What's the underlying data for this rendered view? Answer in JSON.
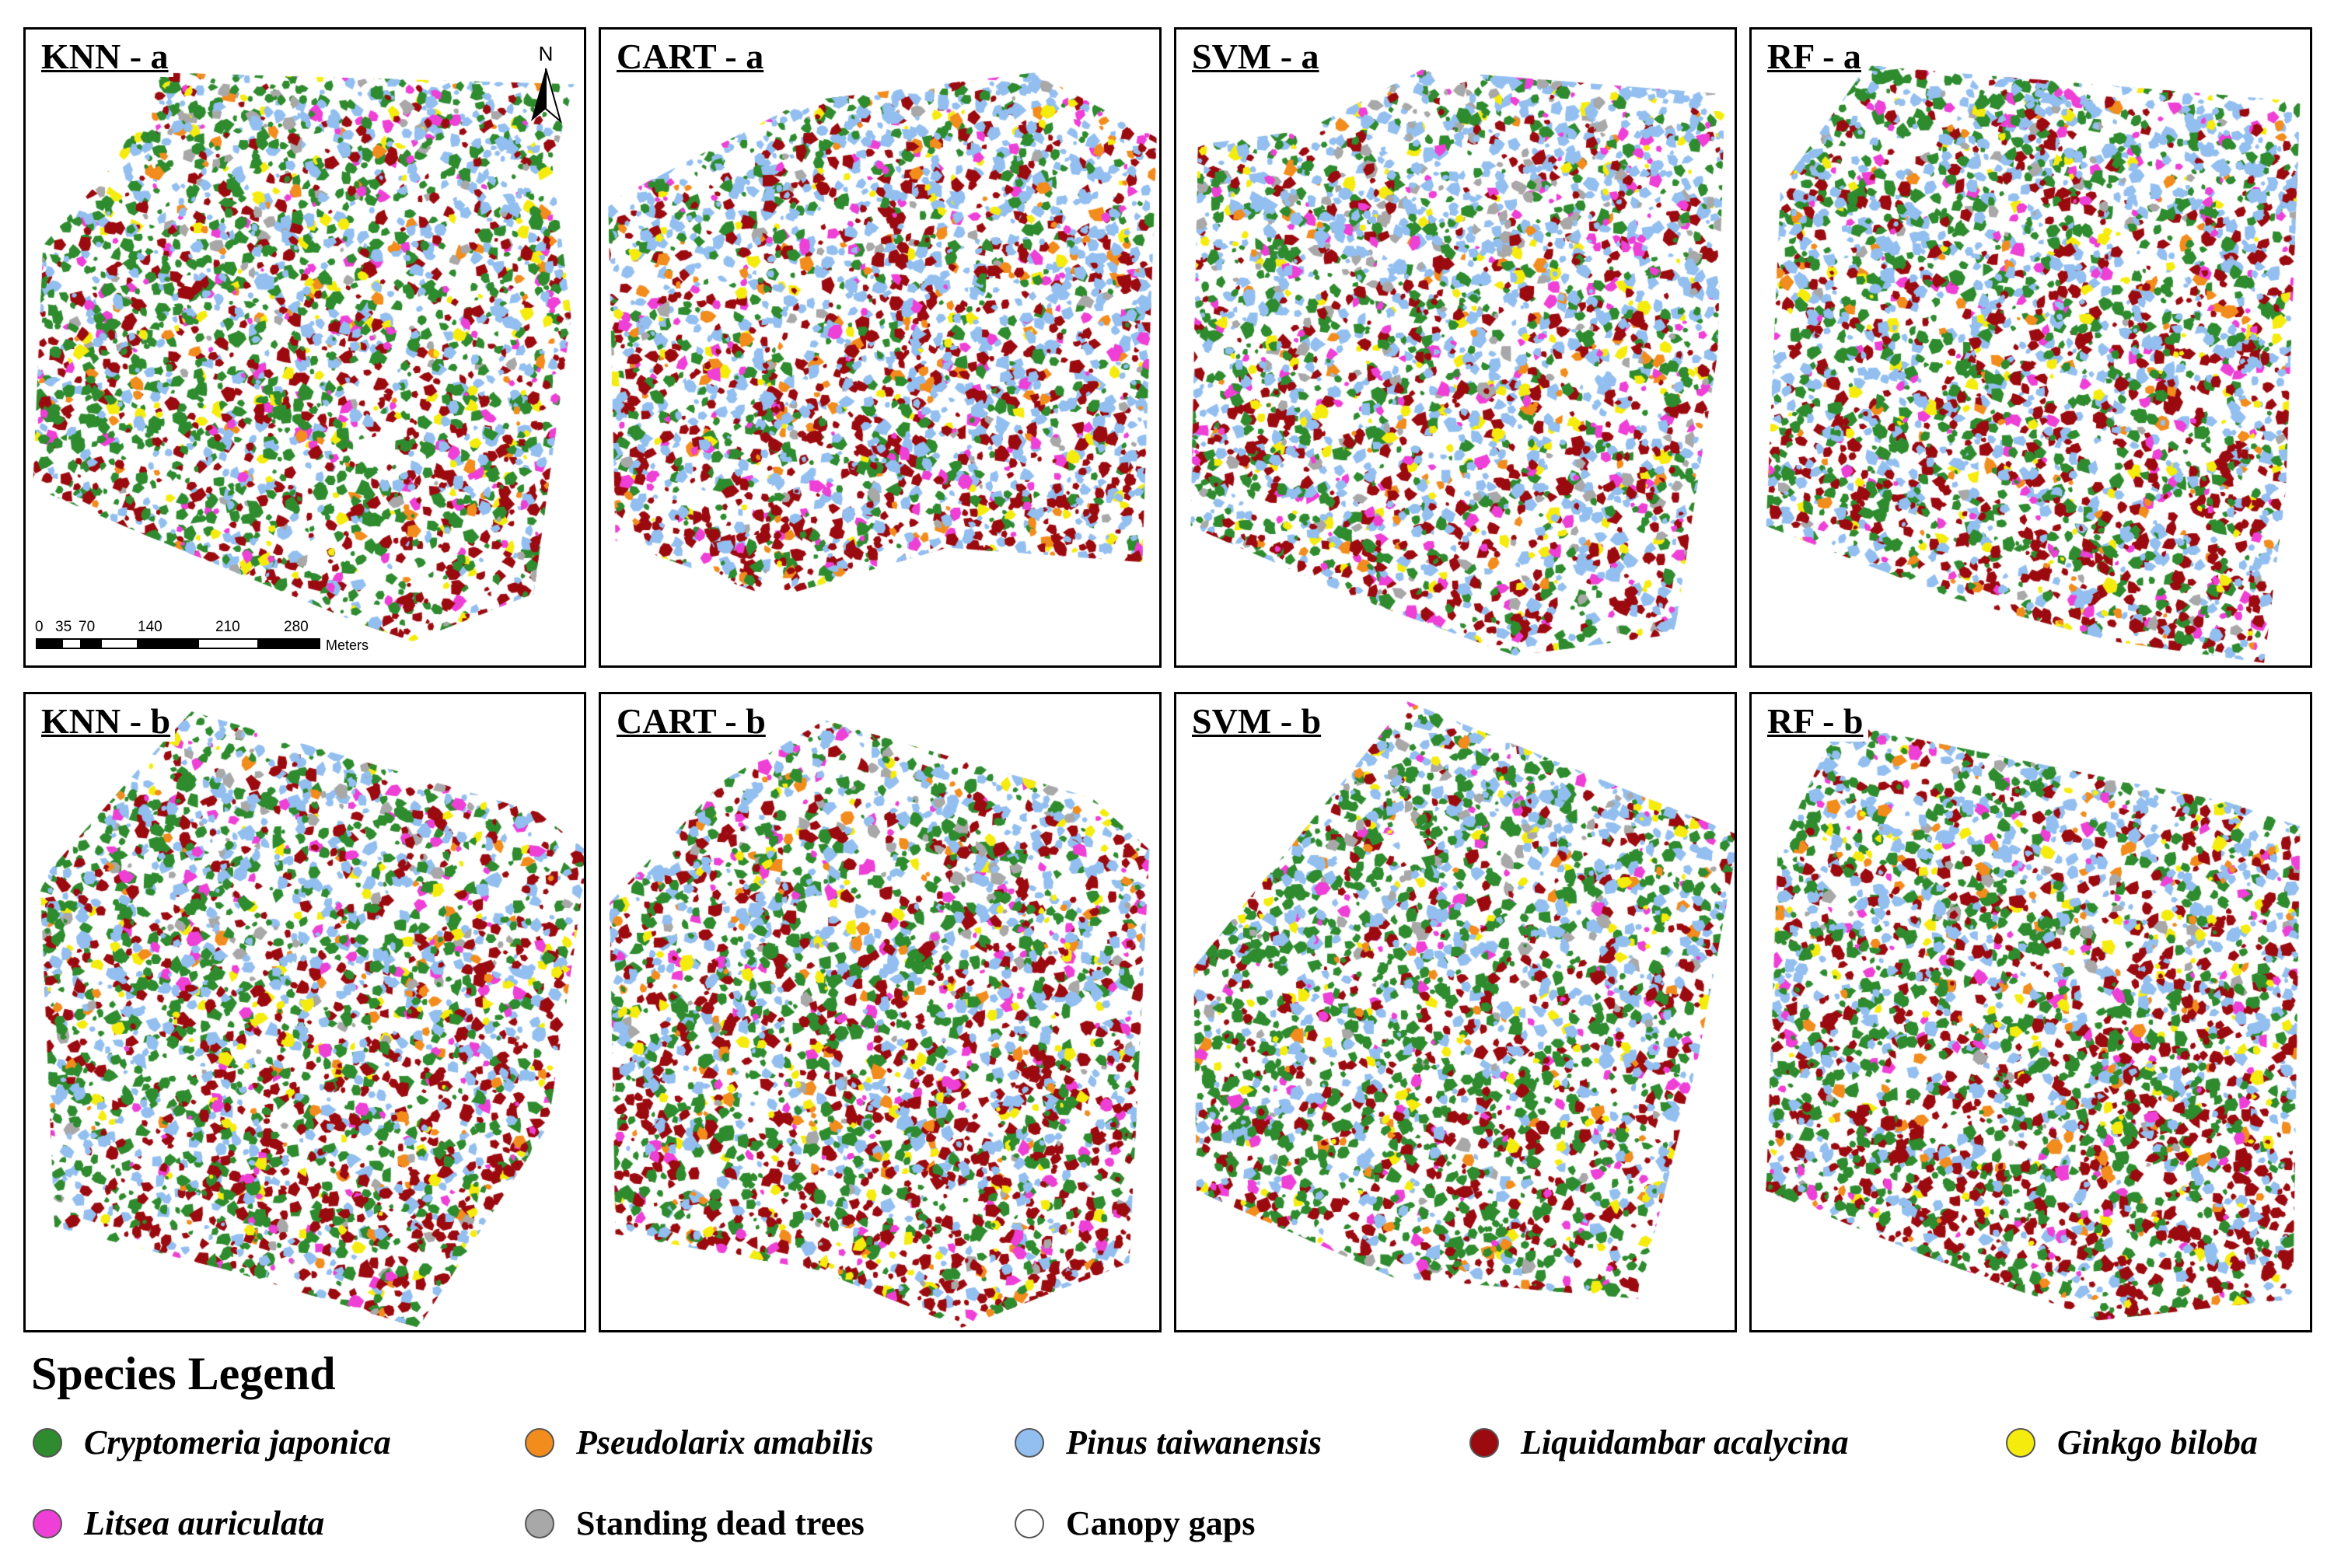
{
  "panels": [
    {
      "label": "KNN - a",
      "seed": 11,
      "mix": [
        0.34,
        0.03,
        0.18,
        0.17,
        0.05,
        0.06,
        0.04
      ]
    },
    {
      "label": "CART - a",
      "seed": 23,
      "mix": [
        0.16,
        0.05,
        0.33,
        0.22,
        0.04,
        0.07,
        0.02
      ]
    },
    {
      "label": "SVM - a",
      "seed": 37,
      "mix": [
        0.2,
        0.03,
        0.3,
        0.16,
        0.06,
        0.07,
        0.07
      ]
    },
    {
      "label": "RF - a",
      "seed": 41,
      "mix": [
        0.28,
        0.03,
        0.27,
        0.2,
        0.04,
        0.06,
        0.02
      ]
    },
    {
      "label": "KNN - b",
      "seed": 53,
      "mix": [
        0.3,
        0.03,
        0.22,
        0.22,
        0.04,
        0.05,
        0.04
      ]
    },
    {
      "label": "CART - b",
      "seed": 67,
      "mix": [
        0.27,
        0.04,
        0.22,
        0.23,
        0.05,
        0.06,
        0.03
      ]
    },
    {
      "label": "SVM - b",
      "seed": 71,
      "mix": [
        0.36,
        0.03,
        0.2,
        0.16,
        0.05,
        0.06,
        0.04
      ]
    },
    {
      "label": "RF - b",
      "seed": 89,
      "mix": [
        0.3,
        0.04,
        0.24,
        0.24,
        0.05,
        0.04,
        0.02
      ]
    }
  ],
  "north_arrow": {
    "letter": "N"
  },
  "scale_bar": {
    "ticks": [
      "0",
      "35",
      "70",
      "140",
      "210",
      "280"
    ],
    "unit": "Meters"
  },
  "legend": {
    "title": "Species Legend",
    "items": [
      {
        "label": "Cryptomeria japonica",
        "color": "#2e8b2e",
        "italic": true
      },
      {
        "label": "Pseudolarix amabilis",
        "color": "#f28c1c",
        "italic": true
      },
      {
        "label": "Pinus taiwanensis",
        "color": "#92bff0",
        "italic": true
      },
      {
        "label": "Liquidambar acalycina",
        "color": "#9b0a0f",
        "italic": true
      },
      {
        "label": "Ginkgo biloba",
        "color": "#f5ec0e",
        "italic": true
      },
      {
        "label": "Litsea auriculata",
        "color": "#ee3fd6",
        "italic": true
      },
      {
        "label": "Standing dead trees",
        "color": "#a8a8a8",
        "italic": false
      },
      {
        "label": "Canopy gaps",
        "color": "#ffffff",
        "italic": false
      }
    ]
  }
}
